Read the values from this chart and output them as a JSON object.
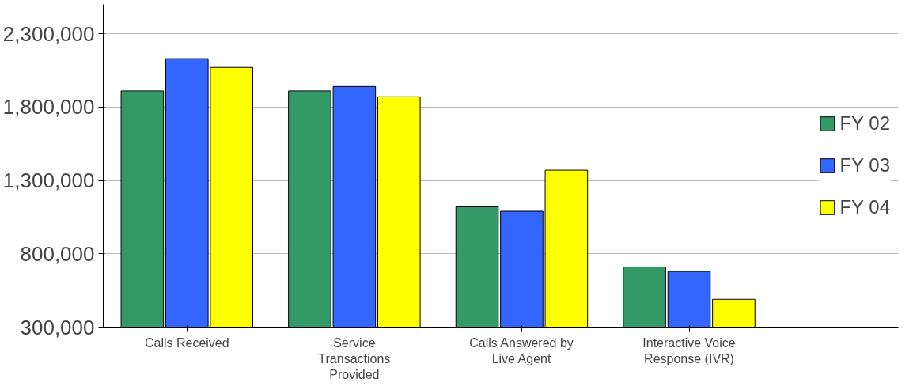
{
  "chart_data": {
    "type": "bar",
    "categories": [
      "Calls Received",
      "Service Transactions Provided",
      "Calls Answered by Live Agent",
      "Interactive Voice Response (IVR)"
    ],
    "series": [
      {
        "name": "FY 02",
        "color": "#339966",
        "values": [
          1910000,
          1910000,
          1120000,
          710000
        ]
      },
      {
        "name": "FY 03",
        "color": "#3366ff",
        "values": [
          2130000,
          1940000,
          1090000,
          680000
        ]
      },
      {
        "name": "FY 04",
        "color": "#ffff00",
        "values": [
          2070000,
          1870000,
          1370000,
          490000
        ]
      }
    ],
    "ylim": [
      300000,
      2500000
    ],
    "yticks": [
      {
        "value": 300000,
        "label": "300,000"
      },
      {
        "value": 800000,
        "label": "800,000"
      },
      {
        "value": 1300000,
        "label": "1,300,000"
      },
      {
        "value": 1800000,
        "label": "1,800,000"
      },
      {
        "value": 2300000,
        "label": "2,300,000"
      }
    ],
    "grid": "y",
    "legend": "right"
  }
}
